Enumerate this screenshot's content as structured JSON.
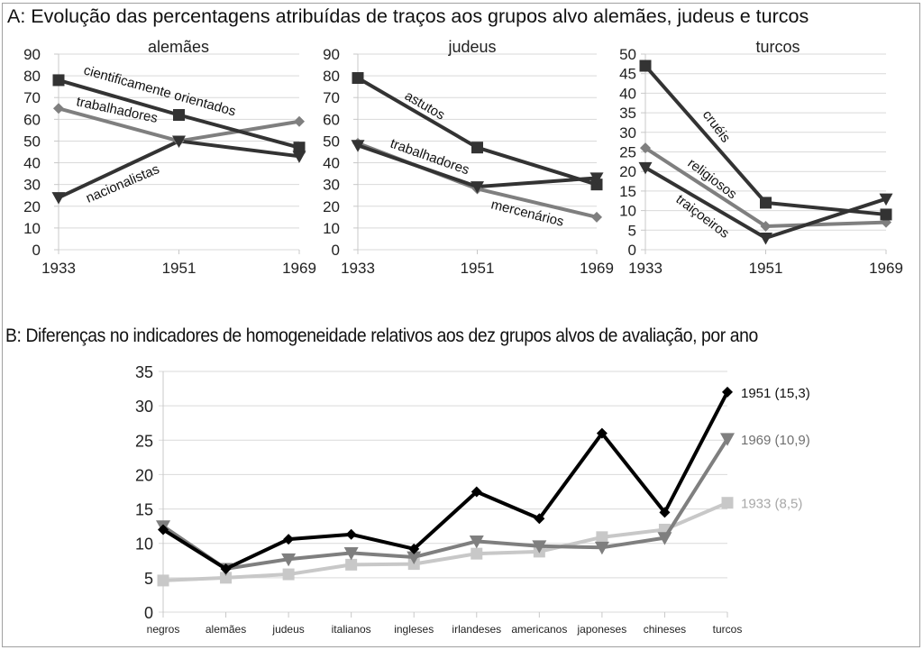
{
  "section_a": {
    "title": "A: Evolução das percentagens atribuídas de traços aos grupos alvo alemães, judeus e turcos"
  },
  "section_b": {
    "title": "B: Diferenças no indicadores de homogeneidade relativos aos dez grupos alvos de avaliação, por ano"
  },
  "colors": {
    "dark": "#333333",
    "medium": "#7f7f7f",
    "light": "#c8c8c8",
    "black": "#000000",
    "grid": "#d9d9d9"
  },
  "chart_data": [
    {
      "type": "line",
      "title": "alemães",
      "x": [
        "1933",
        "1951",
        "1969"
      ],
      "ylim": [
        0,
        90
      ],
      "yticks": [
        "0",
        "10",
        "20",
        "30",
        "40",
        "50",
        "60",
        "70",
        "80",
        "90"
      ],
      "grid": true,
      "series": [
        {
          "name": "cientificamente orientados",
          "marker": "square",
          "color": "#333333",
          "values": [
            78,
            62,
            47
          ]
        },
        {
          "name": "trabalhadores",
          "marker": "diamond",
          "color": "#7f7f7f",
          "values": [
            65,
            50,
            59
          ]
        },
        {
          "name": "nacionalistas",
          "marker": "triangle-down",
          "color": "#333333",
          "values": [
            24,
            50,
            43
          ]
        }
      ]
    },
    {
      "type": "line",
      "title": "judeus",
      "x": [
        "1933",
        "1951",
        "1969"
      ],
      "ylim": [
        0,
        90
      ],
      "yticks": [
        "0",
        "10",
        "20",
        "30",
        "40",
        "50",
        "60",
        "70",
        "80",
        "90"
      ],
      "grid": true,
      "series": [
        {
          "name": "astutos",
          "marker": "square",
          "color": "#333333",
          "values": [
            79,
            47,
            30
          ]
        },
        {
          "name": "mercenários",
          "marker": "diamond",
          "color": "#7f7f7f",
          "values": [
            49,
            28,
            15
          ]
        },
        {
          "name": "trabalhadores",
          "marker": "triangle-down",
          "color": "#333333",
          "values": [
            48,
            29,
            33
          ]
        }
      ]
    },
    {
      "type": "line",
      "title": "turcos",
      "x": [
        "1933",
        "1951",
        "1969"
      ],
      "ylim": [
        0,
        50
      ],
      "yticks": [
        "0",
        "5",
        "10",
        "15",
        "20",
        "25",
        "30",
        "35",
        "40",
        "45",
        "50"
      ],
      "grid": true,
      "series": [
        {
          "name": "cruéis",
          "marker": "square",
          "color": "#333333",
          "values": [
            47,
            12,
            9
          ]
        },
        {
          "name": "religiosos",
          "marker": "diamond",
          "color": "#7f7f7f",
          "values": [
            26,
            6,
            7
          ]
        },
        {
          "name": "traiçoeiros",
          "marker": "triangle-down",
          "color": "#333333",
          "values": [
            21,
            3,
            13
          ]
        }
      ]
    },
    {
      "type": "line",
      "title": "",
      "categories": [
        "negros",
        "alemães",
        "judeus",
        "italianos",
        "ingleses",
        "irlandeses",
        "americanos",
        "japoneses",
        "chineses",
        "turcos"
      ],
      "ylim": [
        0,
        35
      ],
      "yticks": [
        "0",
        "5",
        "10",
        "15",
        "20",
        "25",
        "30",
        "35"
      ],
      "grid": true,
      "legend": "right (end-of-line labels)",
      "series": [
        {
          "name": "1933 (8,5)",
          "marker": "square",
          "color": "#c8c8c8",
          "values": [
            4.6,
            5.0,
            5.5,
            6.9,
            7.0,
            8.5,
            8.8,
            10.9,
            12.0,
            15.9
          ]
        },
        {
          "name": "1969 (10,9)",
          "marker": "triangle-down",
          "color": "#7f7f7f",
          "values": [
            12.5,
            6.3,
            7.7,
            8.6,
            8.0,
            10.3,
            9.6,
            9.4,
            10.8,
            25.2
          ]
        },
        {
          "name": "1951 (15,3)",
          "marker": "diamond",
          "color": "#000000",
          "values": [
            12.0,
            6.3,
            10.6,
            11.3,
            9.2,
            17.5,
            13.6,
            26.0,
            14.5,
            32.0
          ]
        }
      ]
    }
  ]
}
